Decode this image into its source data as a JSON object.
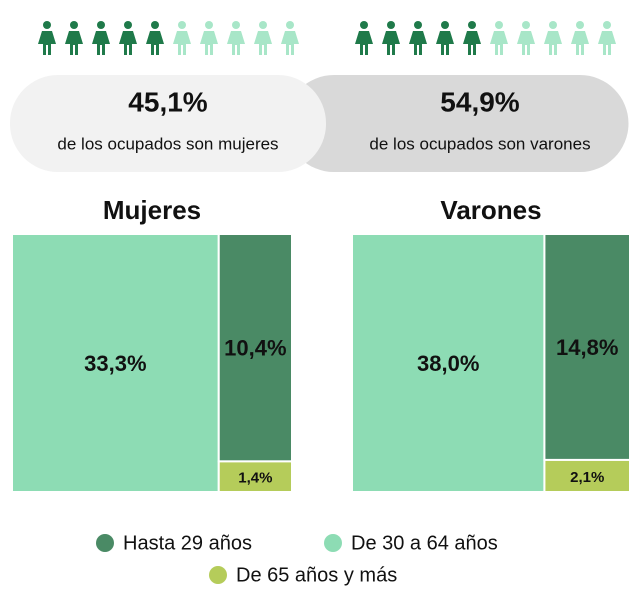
{
  "summary": [
    {
      "label": "45,1%",
      "text": "de los ocupados son mujeres"
    },
    {
      "label": "54,9%",
      "text": "de los ocupados son varones"
    }
  ],
  "chart_data": [
    {
      "type": "treemap",
      "title": "Mujeres",
      "categories": [
        "Hasta 29 años",
        "De 30 a 64 años",
        "De 65 años y más"
      ],
      "colors": [
        "#4a8a65",
        "#8ddcb4",
        "#b5cc5a"
      ],
      "values": [
        10.4,
        33.3,
        1.4
      ],
      "value_labels": [
        "10,4%",
        "33,3%",
        "1,4%"
      ]
    },
    {
      "type": "treemap",
      "title": "Varones",
      "categories": [
        "Hasta 29 años",
        "De 30 a 64 años",
        "De 65 años y más"
      ],
      "colors": [
        "#4a8a65",
        "#8ddcb4",
        "#b5cc5a"
      ],
      "values": [
        14.8,
        38.0,
        2.1
      ],
      "value_labels": [
        "14,8%",
        "38,0%",
        "2,1%"
      ]
    }
  ]
}
